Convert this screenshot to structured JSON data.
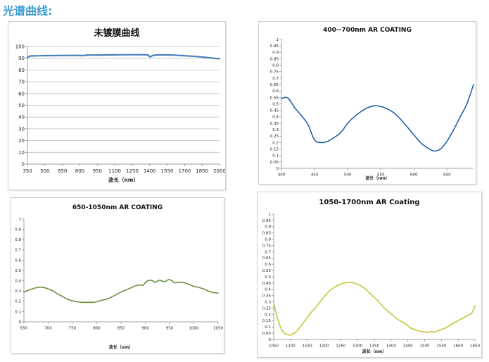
{
  "page": {
    "section_title": "光谱曲线:"
  },
  "chart_data": [
    {
      "type": "line",
      "title": "未镀膜曲线",
      "xlabel": "波长（nm）",
      "ylabel": "",
      "xlim": [
        350,
        2000
      ],
      "ylim": [
        0,
        100
      ],
      "xticks": [
        350,
        500,
        650,
        800,
        950,
        1100,
        1250,
        1400,
        1550,
        1700,
        1850,
        2000
      ],
      "yticks": [
        0,
        10,
        20,
        30,
        40,
        50,
        60,
        70,
        80,
        90,
        100
      ],
      "grid": "horizontal",
      "color": "#4a7ebb",
      "series": [
        {
          "x": [
            350,
            370,
            400,
            450,
            500,
            600,
            700,
            800,
            850,
            855,
            900,
            1000,
            1100,
            1200,
            1300,
            1380,
            1400,
            1410,
            1440,
            1500,
            1600,
            1700,
            1800,
            1900,
            1960,
            2000
          ],
          "values": [
            90.5,
            91.8,
            92.0,
            92.1,
            92.2,
            92.3,
            92.4,
            92.4,
            92.4,
            92.7,
            92.7,
            92.8,
            92.9,
            93.0,
            93.0,
            92.9,
            91.2,
            91.5,
            92.6,
            92.9,
            92.7,
            92.1,
            91.5,
            90.5,
            89.9,
            89.6
          ]
        }
      ]
    },
    {
      "type": "line",
      "title": "400--700nm AR COATING",
      "xlabel": "波长（nm）",
      "ylabel": "",
      "xlim": [
        400,
        690
      ],
      "ylim": [
        0,
        1
      ],
      "xticks": [
        400,
        450,
        500,
        550,
        600,
        650
      ],
      "yticks": [
        0,
        0.05,
        0.1,
        0.15,
        0.2,
        0.25,
        0.3,
        0.35,
        0.4,
        0.45,
        0.5,
        0.55,
        0.6,
        0.65,
        0.7,
        0.75,
        0.8,
        0.85,
        0.9,
        0.95,
        1
      ],
      "grid": "none",
      "color": "#1f5fa8",
      "series": [
        {
          "x": [
            400,
            405,
            410,
            415,
            420,
            430,
            440,
            450,
            460,
            470,
            480,
            490,
            500,
            510,
            520,
            530,
            540,
            550,
            560,
            570,
            580,
            590,
            600,
            610,
            620,
            630,
            640,
            650,
            660,
            670,
            680,
            690
          ],
          "values": [
            0.54,
            0.55,
            0.545,
            0.51,
            0.47,
            0.41,
            0.34,
            0.22,
            0.2,
            0.21,
            0.24,
            0.28,
            0.35,
            0.4,
            0.44,
            0.47,
            0.485,
            0.48,
            0.46,
            0.43,
            0.38,
            0.32,
            0.26,
            0.2,
            0.16,
            0.135,
            0.15,
            0.21,
            0.3,
            0.4,
            0.5,
            0.65
          ]
        }
      ]
    },
    {
      "type": "line",
      "title": "650-1050nm AR COATING",
      "xlabel": "波长（nm）",
      "ylabel": "",
      "xlim": [
        650,
        1050
      ],
      "ylim": [
        0,
        1
      ],
      "xticks": [
        650,
        700,
        750,
        800,
        850,
        900,
        950,
        1000,
        1050
      ],
      "yticks": [
        0,
        0.1,
        0.2,
        0.3,
        0.4,
        0.5,
        0.6,
        0.7,
        0.8,
        0.9,
        1
      ],
      "grid": "none",
      "color": "#6b8e3a",
      "series": [
        {
          "x": [
            650,
            660,
            670,
            680,
            690,
            700,
            710,
            720,
            730,
            740,
            750,
            760,
            770,
            780,
            790,
            800,
            810,
            820,
            830,
            840,
            850,
            860,
            870,
            880,
            890,
            895,
            900,
            905,
            910,
            915,
            920,
            925,
            930,
            940,
            945,
            950,
            955,
            960,
            970,
            980,
            990,
            1000,
            1010,
            1020,
            1030,
            1040,
            1050
          ],
          "values": [
            0.29,
            0.31,
            0.325,
            0.335,
            0.335,
            0.32,
            0.3,
            0.27,
            0.245,
            0.22,
            0.205,
            0.195,
            0.19,
            0.19,
            0.19,
            0.195,
            0.21,
            0.22,
            0.24,
            0.265,
            0.29,
            0.31,
            0.33,
            0.35,
            0.36,
            0.355,
            0.38,
            0.4,
            0.405,
            0.4,
            0.385,
            0.395,
            0.405,
            0.39,
            0.405,
            0.41,
            0.4,
            0.38,
            0.385,
            0.38,
            0.365,
            0.345,
            0.335,
            0.32,
            0.3,
            0.285,
            0.28
          ]
        }
      ]
    },
    {
      "type": "line",
      "title": "1050-1700nm AR Coating",
      "xlabel": "波长（nm）",
      "ylabel": "",
      "xlim": [
        1050,
        1650
      ],
      "ylim": [
        0,
        1
      ],
      "xticks": [
        1050,
        1100,
        1150,
        1200,
        1250,
        1300,
        1350,
        1400,
        1450,
        1500,
        1550,
        1600,
        1650
      ],
      "yticks": [
        0,
        0.05,
        0.1,
        0.15,
        0.2,
        0.25,
        0.3,
        0.35,
        0.4,
        0.45,
        0.5,
        0.55,
        0.6,
        0.65,
        0.7,
        0.75,
        0.8,
        0.85,
        0.9,
        0.95,
        1
      ],
      "grid": "none",
      "color": "#c8c43a",
      "series": [
        {
          "x": [
            1050,
            1060,
            1070,
            1080,
            1090,
            1100,
            1110,
            1120,
            1140,
            1160,
            1180,
            1200,
            1220,
            1240,
            1260,
            1280,
            1300,
            1320,
            1340,
            1360,
            1380,
            1400,
            1420,
            1440,
            1460,
            1480,
            1500,
            1510,
            1520,
            1530,
            1540,
            1560,
            1580,
            1600,
            1620,
            1640,
            1650
          ],
          "values": [
            0.29,
            0.18,
            0.1,
            0.055,
            0.04,
            0.035,
            0.05,
            0.07,
            0.14,
            0.21,
            0.27,
            0.34,
            0.395,
            0.43,
            0.45,
            0.455,
            0.44,
            0.41,
            0.36,
            0.31,
            0.25,
            0.205,
            0.16,
            0.13,
            0.09,
            0.07,
            0.06,
            0.055,
            0.065,
            0.06,
            0.07,
            0.09,
            0.12,
            0.15,
            0.18,
            0.21,
            0.27
          ]
        }
      ]
    }
  ]
}
